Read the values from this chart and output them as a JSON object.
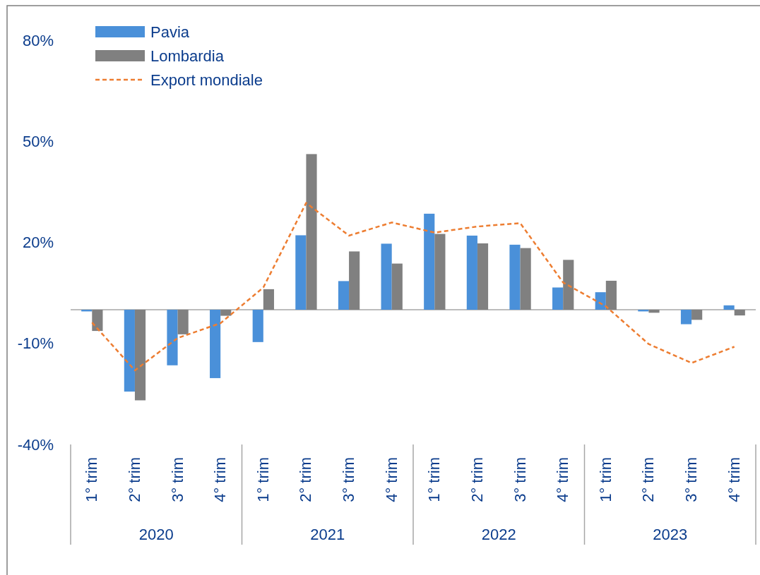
{
  "chart_data": {
    "type": "bar",
    "categories": [
      "1° trim",
      "2° trim",
      "3° trim",
      "4° trim",
      "1° trim",
      "2° trim",
      "3° trim",
      "4° trim",
      "1° trim",
      "2° trim",
      "3° trim",
      "4° trim",
      "1° trim",
      "2° trim",
      "3° trim",
      "4° trim"
    ],
    "annotations": [
      "2020",
      "2021",
      "2022",
      "2023"
    ],
    "series": [
      {
        "name": "Pavia",
        "color": "#4a90d9",
        "values": [
          -0.5,
          -24.3,
          -16.5,
          -20.3,
          -9.6,
          22.1,
          8.5,
          19.6,
          28.5,
          22.0,
          19.3,
          6.6,
          5.2,
          -0.5,
          -4.3,
          1.3
        ]
      },
      {
        "name": "Lombardia",
        "color": "#808080",
        "values": [
          -6.3,
          -26.9,
          -7.3,
          -1.8,
          6.1,
          46.2,
          17.3,
          13.7,
          22.5,
          19.7,
          18.3,
          14.8,
          8.6,
          -0.9,
          -3.0,
          -1.7
        ]
      },
      {
        "name": "Export mondiale",
        "type": "line",
        "color": "#ed7d31",
        "line_style": "dashed",
        "values": [
          -3.8,
          -18.0,
          -8.4,
          -4.0,
          6.6,
          31.7,
          22.0,
          25.9,
          22.9,
          24.7,
          25.7,
          8.1,
          1.0,
          -10.2,
          -15.8,
          -11.0
        ]
      }
    ],
    "ylim": [
      -40,
      80
    ],
    "yticks": [
      {
        "value": -40,
        "label": "-40%"
      },
      {
        "value": -10,
        "label": "-10%"
      },
      {
        "value": 20,
        "label": "20%"
      },
      {
        "value": 50,
        "label": "50%"
      },
      {
        "value": 80,
        "label": "80%"
      }
    ],
    "grid": false,
    "legend": "top left"
  }
}
